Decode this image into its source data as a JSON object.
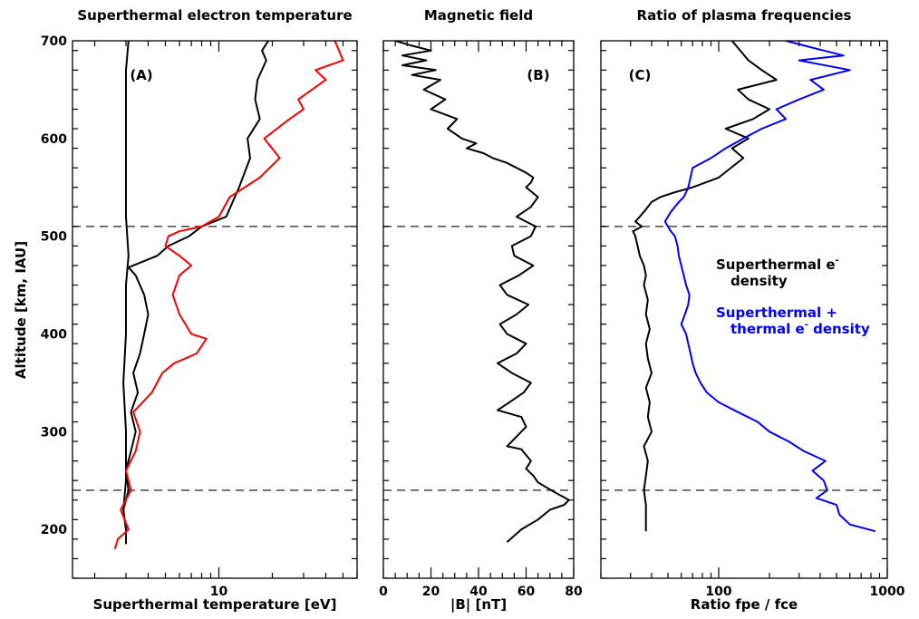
{
  "figure": {
    "ylabel": "Altitude [km, IAU]",
    "ylim": [
      150,
      700
    ],
    "yticks": [
      200,
      300,
      400,
      500,
      600,
      700
    ],
    "dashed_altitudes": [
      510,
      240
    ]
  },
  "chart_data": [
    {
      "type": "line",
      "title": "Superthermal electron temperature",
      "panel_label": "(A)",
      "xlabel": "Superthermal temperature [eV]",
      "xscale": "log",
      "xlim": [
        1.5,
        60
      ],
      "xticks": [
        10
      ],
      "xticklabels": [
        "10"
      ],
      "series": [
        {
          "color": "#000000",
          "x": [
            3.0,
            3.0,
            2.9,
            3.0,
            3.0,
            2.9,
            3.0,
            3.0,
            3.1,
            3.0,
            3.0,
            3.0,
            3.0,
            3.0,
            3.1
          ],
          "y": [
            185,
            200,
            220,
            250,
            300,
            350,
            400,
            450,
            480,
            520,
            550,
            600,
            640,
            670,
            700
          ]
        },
        {
          "color": "#000000",
          "x": [
            3.0,
            3.0,
            2.9,
            3.1,
            3.0,
            3.2,
            3.4,
            3.2,
            3.5,
            3.3,
            3.6,
            3.8,
            4.0,
            3.8,
            3.4,
            3.1,
            4.5,
            5.2,
            6.8,
            8.0,
            11.0,
            13.0,
            15.0,
            14.5,
            17.0,
            16.0,
            16.5,
            18.5,
            17.5,
            19.0
          ],
          "y": [
            185,
            200,
            220,
            240,
            260,
            280,
            300,
            320,
            340,
            360,
            380,
            400,
            420,
            440,
            460,
            468,
            480,
            490,
            500,
            510,
            520,
            550,
            580,
            600,
            620,
            640,
            660,
            680,
            690,
            700
          ]
        },
        {
          "color": "#ff0000",
          "x": [
            2.6,
            2.7,
            3.1,
            2.8,
            3.2,
            3.0,
            3.4,
            3.6,
            3.3,
            4.2,
            4.8,
            5.6,
            6.5,
            7.5,
            8.5,
            7.0,
            6.0,
            5.5,
            6.0,
            7.0,
            6.0,
            5.0,
            5.2,
            6.0,
            8.0,
            10.0,
            11.5,
            17.0,
            22.0,
            18.0,
            25.0,
            30.0,
            28.0,
            40.0,
            35.0,
            50.0,
            45.0
          ],
          "y": [
            180,
            190,
            200,
            220,
            240,
            260,
            280,
            300,
            320,
            340,
            360,
            370,
            375,
            380,
            395,
            400,
            420,
            440,
            460,
            470,
            480,
            490,
            500,
            505,
            510,
            520,
            540,
            560,
            580,
            600,
            620,
            630,
            640,
            660,
            670,
            680,
            700
          ]
        }
      ]
    },
    {
      "type": "line",
      "title": "Magnetic field",
      "panel_label": "(B)",
      "xlabel": "|B| [nT]",
      "xlim": [
        0,
        80
      ],
      "xticks": [
        0,
        20,
        40,
        60,
        80
      ],
      "xticklabels": [
        "0",
        "20",
        "40",
        "60",
        "80"
      ],
      "series": [
        {
          "color": "#000000",
          "x": [
            52,
            58,
            65,
            70,
            76,
            78,
            72,
            65,
            63,
            60,
            62,
            58,
            52,
            56,
            60,
            58,
            48,
            53,
            59,
            62,
            54,
            48,
            56,
            60,
            52,
            49,
            56,
            61,
            52,
            49,
            57,
            63,
            55,
            54,
            62,
            64,
            56,
            62,
            65,
            60,
            62,
            63,
            60,
            56,
            52,
            46,
            42,
            35,
            39,
            33,
            27,
            31,
            20,
            26,
            17,
            24,
            12,
            22,
            8,
            18,
            8,
            20,
            12,
            5
          ],
          "y": [
            187,
            200,
            210,
            220,
            225,
            230,
            238,
            248,
            255,
            262,
            270,
            282,
            285,
            295,
            305,
            315,
            322,
            330,
            340,
            350,
            360,
            370,
            380,
            390,
            400,
            410,
            420,
            430,
            440,
            450,
            460,
            470,
            480,
            490,
            500,
            510,
            520,
            530,
            540,
            550,
            555,
            560,
            565,
            570,
            575,
            580,
            585,
            590,
            595,
            600,
            610,
            620,
            630,
            640,
            650,
            660,
            665,
            670,
            675,
            680,
            685,
            690,
            695,
            700
          ]
        }
      ]
    },
    {
      "type": "line",
      "title": "Ratio of plasma frequencies",
      "panel_label": "(C)",
      "xlabel": "Ratio fpe / fce",
      "xscale": "log",
      "xlim": [
        20,
        1000
      ],
      "xticks": [
        100,
        1000
      ],
      "xticklabels": [
        "100",
        "1000"
      ],
      "series": [
        {
          "name": "Superthermal e- density",
          "legend_lines": [
            "Superthermal e",
            "density"
          ],
          "legend_sup": "-",
          "color": "#000000",
          "x": [
            37,
            37,
            37,
            36,
            37,
            38,
            36,
            40,
            38,
            39,
            37,
            40,
            38,
            37,
            39,
            37,
            38,
            36,
            37,
            36,
            34,
            33,
            32,
            31,
            35,
            32,
            34,
            36,
            38,
            40,
            45,
            55,
            70,
            100,
            140,
            120,
            150,
            110,
            160,
            200,
            150,
            130,
            220,
            180,
            150,
            120
          ],
          "y": [
            198,
            210,
            225,
            240,
            255,
            270,
            285,
            300,
            315,
            330,
            345,
            360,
            375,
            390,
            405,
            420,
            435,
            450,
            460,
            470,
            480,
            490,
            500,
            505,
            510,
            515,
            520,
            525,
            530,
            535,
            540,
            545,
            550,
            560,
            580,
            590,
            600,
            610,
            620,
            630,
            640,
            650,
            660,
            670,
            680,
            700
          ]
        },
        {
          "name": "Superthermal + thermal e- density",
          "legend_lines": [
            "Superthermal +",
            "thermal e",
            " density"
          ],
          "legend_sup": "-",
          "color": "#0000ff",
          "x": [
            850,
            600,
            520,
            500,
            380,
            440,
            420,
            360,
            430,
            320,
            260,
            200,
            170,
            130,
            100,
            85,
            78,
            73,
            70,
            68,
            66,
            64,
            60,
            63,
            66,
            67,
            64,
            62,
            60,
            58,
            57,
            55,
            52,
            50,
            48,
            50,
            52,
            55,
            58,
            62,
            64,
            66,
            68,
            70,
            90,
            110,
            140,
            180,
            250,
            220,
            300,
            420,
            350,
            600,
            300,
            550,
            420,
            250
          ],
          "y": [
            198,
            205,
            215,
            225,
            232,
            240,
            250,
            260,
            270,
            280,
            290,
            300,
            310,
            320,
            330,
            340,
            350,
            360,
            370,
            380,
            390,
            400,
            410,
            420,
            430,
            440,
            450,
            460,
            470,
            480,
            490,
            500,
            505,
            510,
            515,
            520,
            525,
            530,
            535,
            540,
            545,
            550,
            560,
            570,
            580,
            590,
            600,
            610,
            620,
            630,
            640,
            650,
            660,
            670,
            680,
            685,
            690,
            700
          ]
        }
      ]
    }
  ]
}
